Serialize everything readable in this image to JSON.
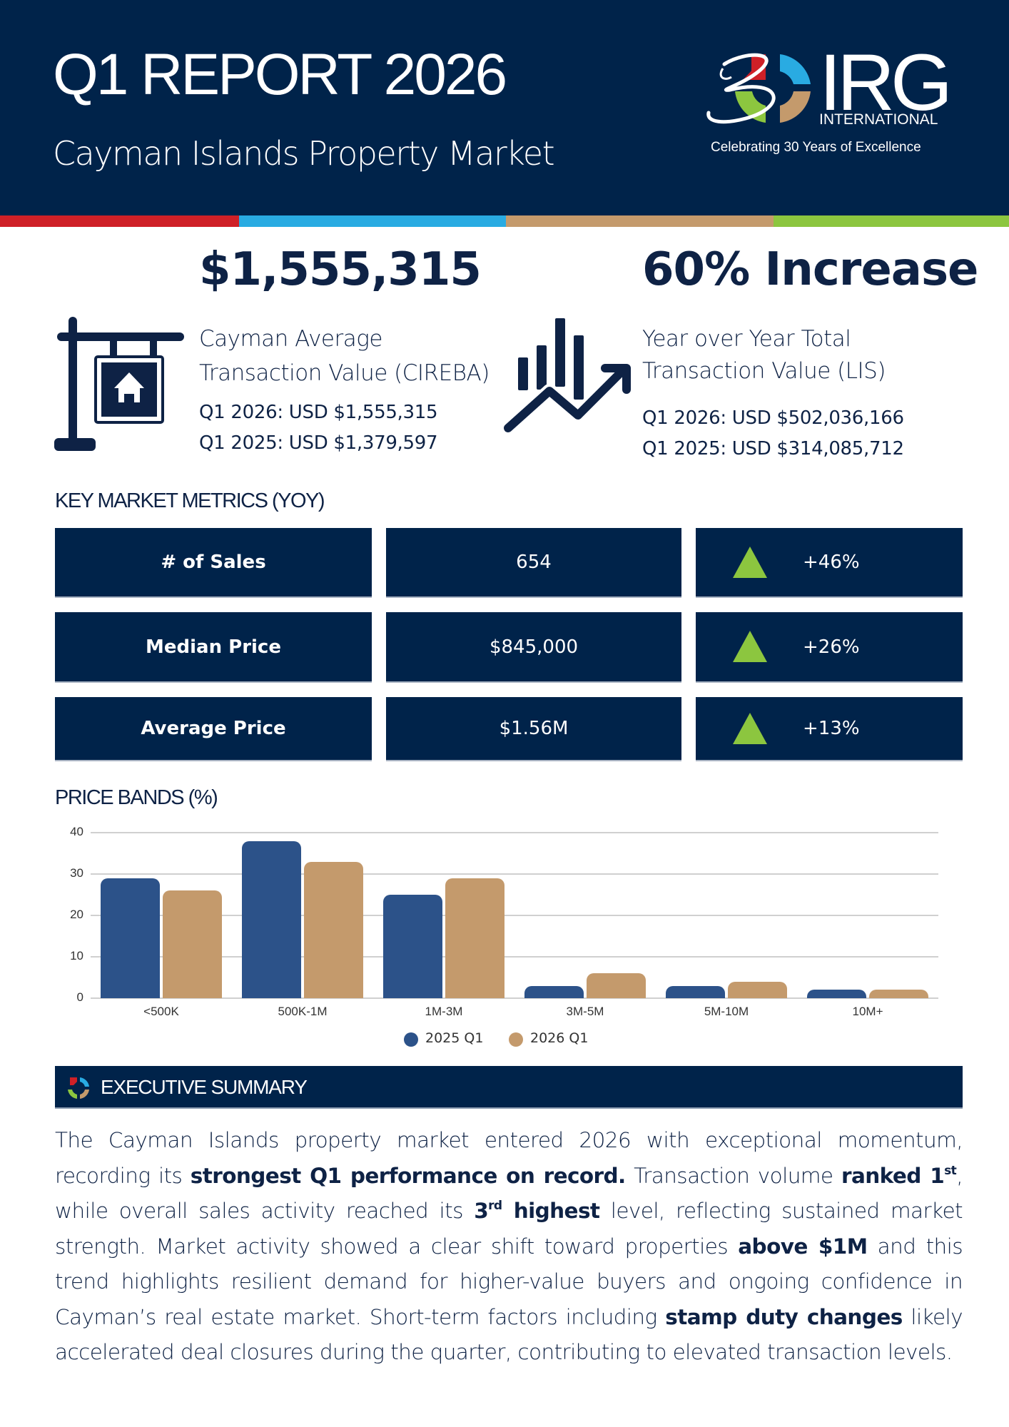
{
  "header": {
    "title": "Q1 REPORT 2026",
    "subtitle": "Cayman Islands Property Market",
    "background_color": "#00234a",
    "stripe_colors": [
      "#cf2027",
      "#29abe2",
      "#c49a6c",
      "#8cc63f"
    ]
  },
  "logo": {
    "mark_number": "30",
    "brand": "IRG",
    "sub": "INTERNATIONAL",
    "tagline": "Celebrating 30 Years of Excellence"
  },
  "kpi_left": {
    "headline": "$1,555,315",
    "label_line1": "Cayman Average",
    "label_line2": "Transaction Value (CIREBA)",
    "q1_2026": "Q1 2026: USD $1,555,315",
    "q1_2025": "Q1 2025: USD $1,379,597",
    "icon": "house-for-sale-sign-icon"
  },
  "kpi_right": {
    "headline": "60% Increase",
    "label_line1": "Year over Year Total",
    "label_line2": "Transaction Value (LIS)",
    "q1_2026": "Q1 2026: USD $502,036,166",
    "q1_2025": "Q1 2025: USD $314,085,712",
    "icon": "growth-chart-arrow-icon"
  },
  "metrics": {
    "title": "KEY MARKET METRICS (YOY)",
    "rows": [
      {
        "label": "# of Sales",
        "value": "654",
        "change": "+46%",
        "direction": "up"
      },
      {
        "label": "Median Price",
        "value": "$845,000",
        "change": "+26%",
        "direction": "up"
      },
      {
        "label": "Average Price",
        "value": "$1.56M",
        "change": "+13%",
        "direction": "up"
      }
    ],
    "up_color": "#8cc63f"
  },
  "price_bands": {
    "title": "PRICE BANDS  (%)"
  },
  "chart_data": {
    "type": "bar",
    "title": "PRICE BANDS (%)",
    "xlabel": "",
    "ylabel": "%",
    "categories": [
      "<500K",
      "500K-1M",
      "1M-3M",
      "3M-5M",
      "5M-10M",
      "10M+"
    ],
    "series": [
      {
        "name": "2025 Q1",
        "color": "#2c5289",
        "values": [
          29,
          38,
          25,
          3,
          3,
          2
        ]
      },
      {
        "name": "2026 Q1",
        "color": "#c49a6c",
        "values": [
          26,
          33,
          29,
          6,
          4,
          2
        ]
      }
    ],
    "yticks": [
      0,
      10,
      20,
      30,
      40
    ],
    "ylim": [
      0,
      40
    ],
    "grid": true,
    "legend_position": "bottom"
  },
  "executive_summary": {
    "title": "EXECUTIVE SUMMARY",
    "segments": [
      {
        "t": "The Cayman Islands property market entered 2026 with exceptional momentum, recording its ",
        "b": false
      },
      {
        "t": "strongest Q1 performance on record.",
        "b": true
      },
      {
        "t": " Transaction volume ",
        "b": false
      },
      {
        "t": "ranked 1",
        "b": true
      },
      {
        "t": "st",
        "sup": true
      },
      {
        "t": ", while overall sales activity reached its ",
        "b": false
      },
      {
        "t": "3",
        "b": true
      },
      {
        "t": "rd",
        "sup": true
      },
      {
        "t": " highest",
        "b": true
      },
      {
        "t": " level, reflecting sustained market strength. Market activity showed a clear shift toward properties ",
        "b": false
      },
      {
        "t": "above $1M",
        "b": true
      },
      {
        "t": " and this trend highlights resilient demand for higher-value buyers and ongoing confidence in Cayman’s real estate market.  Short-term factors including ",
        "b": false
      },
      {
        "t": "stamp duty changes",
        "b": true
      },
      {
        "t": " likely accelerated deal closures during the quarter, contributing to elevated transaction levels.",
        "b": false
      }
    ]
  }
}
